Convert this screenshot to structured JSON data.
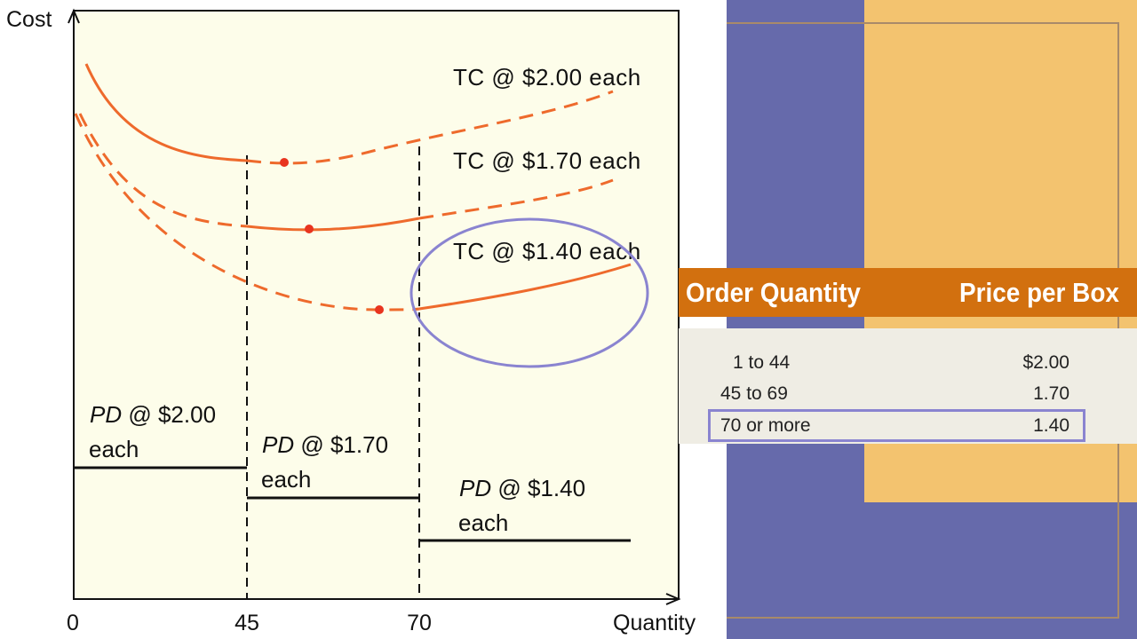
{
  "chart_data": {
    "type": "line",
    "xlabel": "Quantity",
    "ylabel": "Cost",
    "x_ticks": [
      "0",
      "45",
      "70"
    ],
    "series": [
      {
        "name": "TC @ $2.00 each",
        "kind": "total cost",
        "solid_range": [
          0,
          45
        ],
        "dashed_range": [
          45,
          "end"
        ],
        "min_marker": true
      },
      {
        "name": "TC @ $1.70 each",
        "kind": "total cost",
        "solid_range": [
          45,
          70
        ],
        "dashed_range": "outside",
        "min_marker": true
      },
      {
        "name": "TC @ $1.40 each",
        "kind": "total cost",
        "solid_range": [
          70,
          "end"
        ],
        "dashed_range": [
          0,
          70
        ],
        "min_marker": true,
        "highlighted": true
      }
    ],
    "pd_lines": [
      {
        "label_italic": "PD",
        "label": " @ $2.00",
        "label2": "each",
        "range": [
          0,
          45
        ]
      },
      {
        "label_italic": "PD",
        "label": " @ $1.70",
        "label2": "each",
        "range": [
          45,
          70
        ]
      },
      {
        "label_italic": "PD",
        "label": " @ $1.40",
        "label2": "each",
        "range": [
          70,
          "end"
        ]
      }
    ],
    "colors": {
      "curve": "#ee6a2c",
      "marker": "#e8341f",
      "highlight": "#8a84d0",
      "plot_bg": "#fdfdea"
    }
  },
  "table": {
    "headers": [
      "Order Quantity",
      "Price per Box"
    ],
    "rows": [
      [
        "1 to 44",
        "$2.00"
      ],
      [
        "45 to 69",
        "1.70"
      ],
      [
        "70 or more",
        "1.40"
      ]
    ],
    "highlighted_row": 2
  }
}
